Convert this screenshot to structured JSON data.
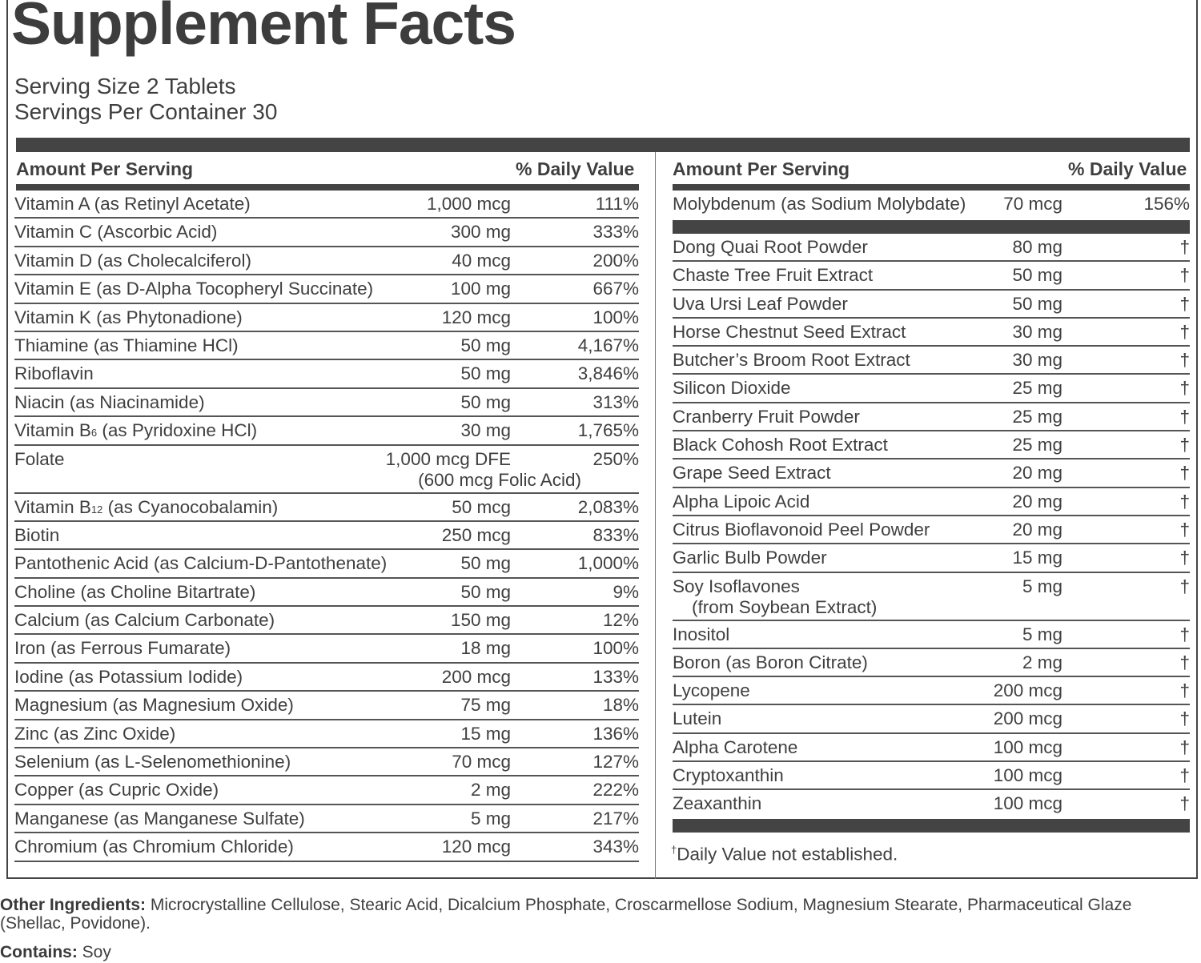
{
  "title": "Supplement Facts",
  "serving_size": "Serving Size 2 Tablets",
  "servings_per_container": "Servings Per Container 30",
  "headers": {
    "amount": "Amount Per Serving",
    "dv": "% Daily Value"
  },
  "left_rows": [
    {
      "name": "Vitamin A (as Retinyl Acetate)",
      "amount": "1,000 mcg",
      "dv": "111%"
    },
    {
      "name": "Vitamin C (Ascorbic Acid)",
      "amount": "300 mg",
      "dv": "333%"
    },
    {
      "name": "Vitamin D (as Cholecalciferol)",
      "amount": "40 mcg",
      "dv": "200%"
    },
    {
      "name": "Vitamin E (as D-Alpha Tocopheryl Succinate)",
      "amount": "100 mg",
      "dv": "667%"
    },
    {
      "name": "Vitamin K (as Phytonadione)",
      "amount": "120 mcg",
      "dv": "100%"
    },
    {
      "name": "Thiamine (as Thiamine HCl)",
      "amount": "50 mg",
      "dv": "4,167%"
    },
    {
      "name": "Riboflavin",
      "amount": "50 mg",
      "dv": "3,846%"
    },
    {
      "name": "Niacin (as Niacinamide)",
      "amount": "50 mg",
      "dv": "313%"
    },
    {
      "name_prefix": "Vitamin B",
      "name_sub": "6",
      "name_suffix": " (as Pyridoxine HCl)",
      "amount": "30 mg",
      "dv": "1,765%"
    },
    {
      "name": "Folate",
      "amount": "1,000 mcg DFE",
      "amount2": "(600 mcg Folic Acid)",
      "dv": "250%"
    },
    {
      "name_prefix": "Vitamin B",
      "name_sub": "12",
      "name_suffix": " (as Cyanocobalamin)",
      "amount": "50 mcg",
      "dv": "2,083%"
    },
    {
      "name": "Biotin",
      "amount": "250 mcg",
      "dv": "833%"
    },
    {
      "name": "Pantothenic Acid (as Calcium-D-Pantothenate)",
      "amount": "50 mg",
      "dv": "1,000%"
    },
    {
      "name": "Choline (as Choline Bitartrate)",
      "amount": "50 mg",
      "dv": "9%"
    },
    {
      "name": "Calcium (as Calcium Carbonate)",
      "amount": "150 mg",
      "dv": "12%"
    },
    {
      "name": "Iron (as Ferrous Fumarate)",
      "amount": "18 mg",
      "dv": "100%"
    },
    {
      "name": "Iodine (as Potassium Iodide)",
      "amount": "200 mcg",
      "dv": "133%"
    },
    {
      "name": "Magnesium (as Magnesium Oxide)",
      "amount": "75 mg",
      "dv": "18%"
    },
    {
      "name": "Zinc (as Zinc Oxide)",
      "amount": "15 mg",
      "dv": "136%"
    },
    {
      "name": "Selenium (as L-Selenomethionine)",
      "amount": "70 mcg",
      "dv": "127%"
    },
    {
      "name": "Copper (as Cupric Oxide)",
      "amount": "2 mg",
      "dv": "222%"
    },
    {
      "name": "Manganese (as Manganese Sulfate)",
      "amount": "5 mg",
      "dv": "217%"
    },
    {
      "name": "Chromium (as Chromium Chloride)",
      "amount": "120 mcg",
      "dv": "343%"
    }
  ],
  "right_first_row": {
    "name": "Molybdenum (as Sodium Molybdate)",
    "amount": "70 mcg",
    "dv": "156%"
  },
  "right_rows": [
    {
      "name": "Dong Quai Root Powder",
      "amount": "80 mg",
      "dv": "†"
    },
    {
      "name": "Chaste Tree Fruit Extract",
      "amount": "50 mg",
      "dv": "†"
    },
    {
      "name": "Uva Ursi Leaf Powder",
      "amount": "50 mg",
      "dv": "†"
    },
    {
      "name": "Horse Chestnut Seed Extract",
      "amount": "30 mg",
      "dv": "†"
    },
    {
      "name": "Butcher’s Broom Root Extract",
      "amount": "30 mg",
      "dv": "†"
    },
    {
      "name": "Silicon Dioxide",
      "amount": "25 mg",
      "dv": "†"
    },
    {
      "name": "Cranberry Fruit Powder",
      "amount": "25 mg",
      "dv": "†"
    },
    {
      "name": "Black Cohosh Root Extract",
      "amount": "25 mg",
      "dv": "†"
    },
    {
      "name": "Grape Seed Extract",
      "amount": "20 mg",
      "dv": "†"
    },
    {
      "name": "Alpha Lipoic Acid",
      "amount": "20 mg",
      "dv": "†"
    },
    {
      "name": "Citrus Bioflavonoid Peel Powder",
      "amount": "20 mg",
      "dv": "†"
    },
    {
      "name": "Garlic Bulb Powder",
      "amount": "15 mg",
      "dv": "†"
    },
    {
      "name": "Soy Isoflavones",
      "name2": "(from Soybean Extract)",
      "amount": "5 mg",
      "dv": "†"
    },
    {
      "name": "Inositol",
      "amount": "5 mg",
      "dv": "†"
    },
    {
      "name": "Boron (as Boron Citrate)",
      "amount": "2 mg",
      "dv": "†"
    },
    {
      "name": "Lycopene",
      "amount": "200 mcg",
      "dv": "†"
    },
    {
      "name": "Lutein",
      "amount": "200 mcg",
      "dv": "†"
    },
    {
      "name": "Alpha Carotene",
      "amount": "100 mcg",
      "dv": "†"
    },
    {
      "name": "Cryptoxanthin",
      "amount": "100 mcg",
      "dv": "†"
    },
    {
      "name": "Zeaxanthin",
      "amount": "100 mcg",
      "dv": "†"
    }
  ],
  "footnote_mark": "†",
  "footnote": "Daily Value not established.",
  "other_label": "Other Ingredients:",
  "other_text": " Microcrystalline Cellulose, Stearic Acid, Dicalcium Phosphate, Croscarmellose Sodium, Magnesium Stearate, Pharmaceutical Glaze (Shellac, Povidone).",
  "contains_label": "Contains:",
  "contains_text": " Soy"
}
